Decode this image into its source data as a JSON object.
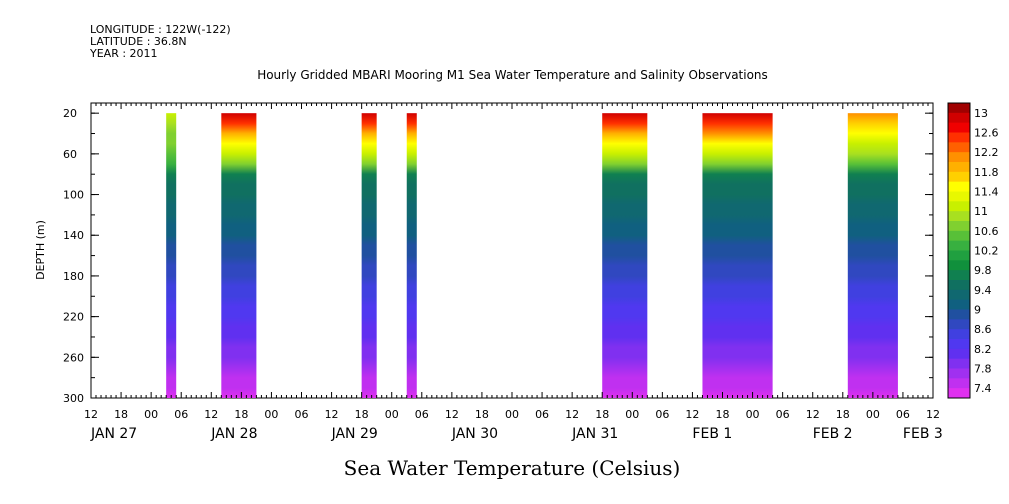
{
  "header": {
    "longitude": "LONGITUDE : 122W(-122)",
    "latitude": "LATITUDE : 36.8N",
    "year": "YEAR : 2011"
  },
  "chart_data": {
    "type": "heatmap",
    "title": "Hourly Gridded MBARI Mooring M1 Sea Water Temperature and Salinity Observations",
    "xlabel": "Sea Water Temperature (Celsius)",
    "ylabel": "DEPTH (m)",
    "y_ticks": [
      20,
      60,
      100,
      140,
      180,
      220,
      260,
      300
    ],
    "ylim": [
      300,
      10
    ],
    "x_hour_ticks": [
      "12",
      "18",
      "00",
      "06",
      "12",
      "18",
      "00",
      "06",
      "12",
      "18",
      "00",
      "06",
      "12",
      "18",
      "00",
      "06",
      "12",
      "18",
      "00",
      "06",
      "12",
      "18",
      "00",
      "06",
      "12",
      "18",
      "00",
      "06",
      "12"
    ],
    "x_date_labels": [
      {
        "label": "JAN 27",
        "hours_from_start": 0
      },
      {
        "label": "JAN 28",
        "hours_from_start": 24
      },
      {
        "label": "JAN 29",
        "hours_from_start": 48
      },
      {
        "label": "JAN 30",
        "hours_from_start": 72
      },
      {
        "label": "JAN 31",
        "hours_from_start": 96
      },
      {
        "label": "FEB  1",
        "hours_from_start": 120
      },
      {
        "label": "FEB  2",
        "hours_from_start": 144
      },
      {
        "label": "FEB  3",
        "hours_from_start": 162
      }
    ],
    "data_blocks": [
      {
        "start": "JAN 28 03:00",
        "end": "JAN 28 05:00",
        "surface_temp": 11.0
      },
      {
        "start": "JAN 28 14:00",
        "end": "JAN 28 21:00",
        "surface_temp": 12.8
      },
      {
        "start": "JAN 29 18:00",
        "end": "JAN 29 21:00",
        "surface_temp": 12.8
      },
      {
        "start": "JAN 30 03:00",
        "end": "JAN 30 05:00",
        "surface_temp": 12.8
      },
      {
        "start": "JAN 31 18:00",
        "end": "FEB 1 03:00",
        "surface_temp": 12.8
      },
      {
        "start": "FEB 1 14:00",
        "end": "FEB 2 04:00",
        "surface_temp": 12.9
      },
      {
        "start": "FEB 2 19:00",
        "end": "FEB 3 05:00",
        "surface_temp": 12.0
      }
    ],
    "colorbar": {
      "labels": [
        "13",
        "12.6",
        "12.2",
        "11.8",
        "11.4",
        "11",
        "10.6",
        "10.2",
        "9.8",
        "9.4",
        "9",
        "8.6",
        "8.2",
        "7.8",
        "7.4"
      ],
      "colors": [
        "#a00000",
        "#d00000",
        "#f00000",
        "#ff3000",
        "#ff6000",
        "#ff9000",
        "#ffb000",
        "#ffd000",
        "#ffff00",
        "#e8f800",
        "#c8f000",
        "#a8e020",
        "#80d030",
        "#58c038",
        "#38b040",
        "#20a040",
        "#10903c",
        "#108050",
        "#107060",
        "#106870",
        "#106080",
        "#2050a0",
        "#3048c0",
        "#4040e0",
        "#5038f0",
        "#6030f0",
        "#8030f0",
        "#a030f0",
        "#c030f0",
        "#e030f0"
      ]
    }
  }
}
